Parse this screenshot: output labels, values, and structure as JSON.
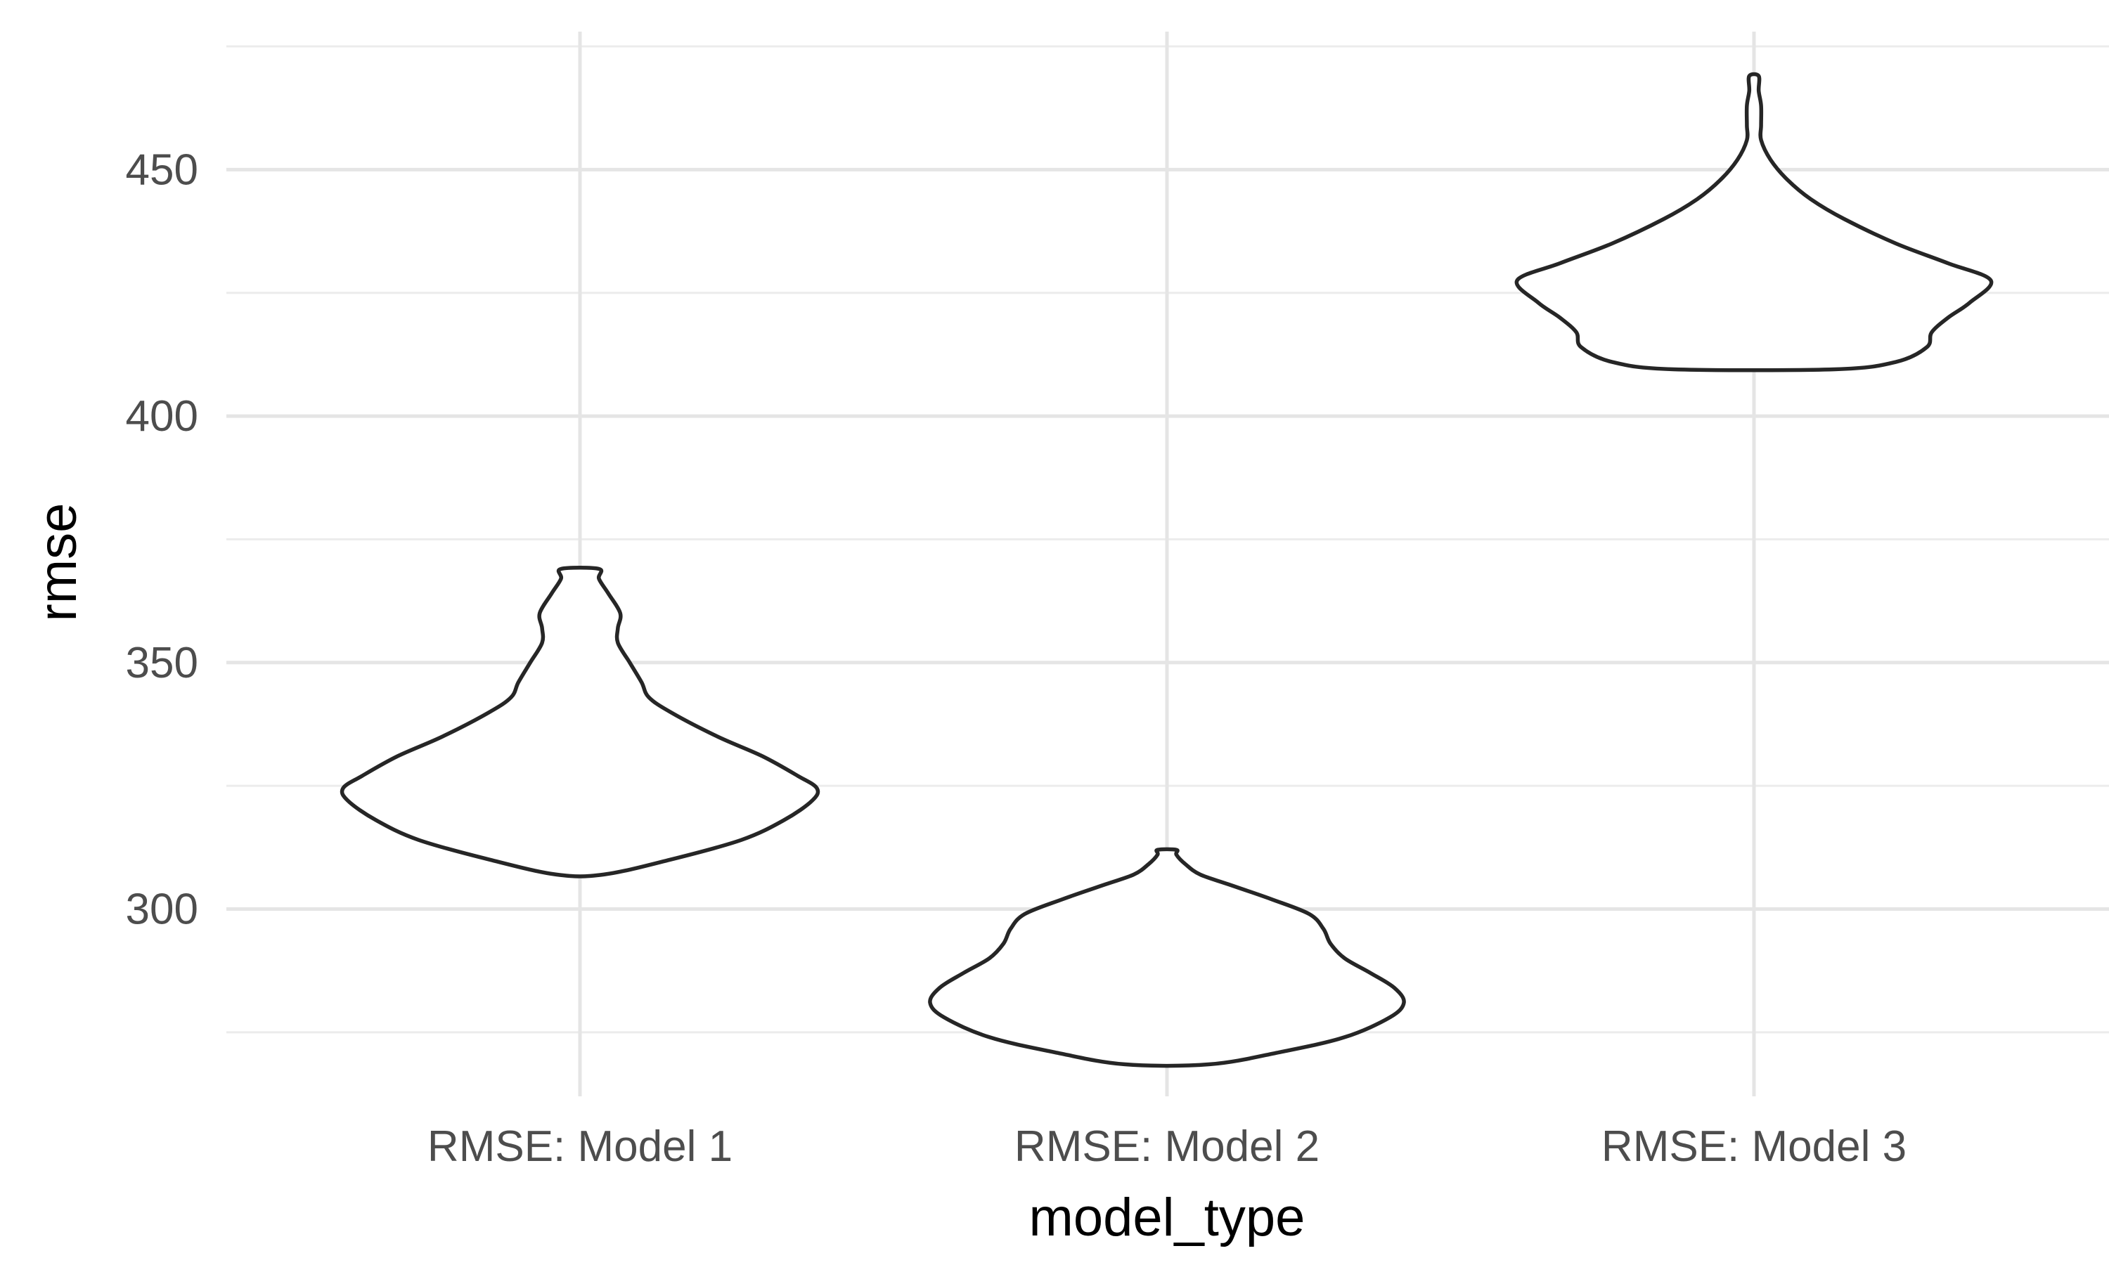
{
  "chart_data": {
    "type": "violin",
    "title": "",
    "xlabel": "model_type",
    "ylabel": "rmse",
    "ylim": [
      262,
      478
    ],
    "yticks": [
      300,
      350,
      400,
      450
    ],
    "grid": true,
    "colors": {
      "outline": "#262626",
      "fill": "#ffffff",
      "grid": "#e5e5e5",
      "tick_text": "#4d4d4d"
    },
    "categories": [
      "RMSE: Model 1",
      "RMSE: Model 2",
      "RMSE: Model 3"
    ],
    "violins": [
      {
        "category": "RMSE: Model 1",
        "min": 307,
        "max": 369,
        "density": [
          [
            307,
            0.1
          ],
          [
            310,
            0.38
          ],
          [
            314,
            0.68
          ],
          [
            318,
            0.86
          ],
          [
            322,
            0.98
          ],
          [
            324.5,
            1.0
          ],
          [
            327,
            0.92
          ],
          [
            331,
            0.77
          ],
          [
            335,
            0.58
          ],
          [
            340,
            0.38
          ],
          [
            343,
            0.29
          ],
          [
            346,
            0.26
          ],
          [
            350,
            0.21
          ],
          [
            354,
            0.16
          ],
          [
            357,
            0.16
          ],
          [
            360,
            0.17
          ],
          [
            364,
            0.12
          ],
          [
            367,
            0.08
          ],
          [
            369,
            0.08
          ]
        ]
      },
      {
        "category": "RMSE: Model 2",
        "min": 268.5,
        "max": 312,
        "density": [
          [
            268.5,
            0.18
          ],
          [
            271,
            0.48
          ],
          [
            274,
            0.75
          ],
          [
            278,
            0.94
          ],
          [
            281,
            1.0
          ],
          [
            284,
            0.96
          ],
          [
            287,
            0.86
          ],
          [
            290,
            0.75
          ],
          [
            293,
            0.69
          ],
          [
            296,
            0.66
          ],
          [
            299,
            0.6
          ],
          [
            302,
            0.44
          ],
          [
            305,
            0.26
          ],
          [
            307,
            0.14
          ],
          [
            309,
            0.08
          ],
          [
            311,
            0.04
          ],
          [
            312,
            0.04
          ]
        ]
      },
      {
        "category": "RMSE: Model 3",
        "min": 409.5,
        "max": 469,
        "density": [
          [
            409.5,
            0.34
          ],
          [
            411,
            0.6
          ],
          [
            414,
            0.73
          ],
          [
            417,
            0.75
          ],
          [
            420,
            0.82
          ],
          [
            423,
            0.91
          ],
          [
            427.5,
            1.0
          ],
          [
            431,
            0.82
          ],
          [
            435,
            0.6
          ],
          [
            440,
            0.38
          ],
          [
            444,
            0.24
          ],
          [
            448,
            0.14
          ],
          [
            452,
            0.07
          ],
          [
            456,
            0.03
          ],
          [
            459,
            0.03
          ],
          [
            463,
            0.03
          ],
          [
            466,
            0.02
          ],
          [
            469,
            0.02
          ]
        ]
      }
    ]
  }
}
